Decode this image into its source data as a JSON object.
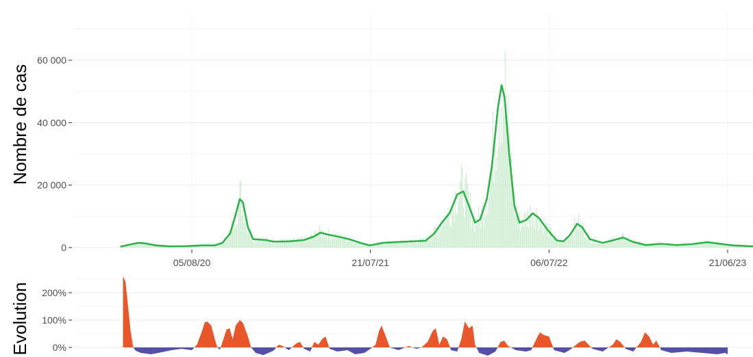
{
  "chart_data": [
    {
      "type": "line",
      "title": "",
      "xlabel": "",
      "ylabel": "Nombre de cas",
      "x_tick_labels": [
        "05/08/20",
        "21/07/21",
        "06/07/22",
        "21/06/23"
      ],
      "y_tick_labels": [
        "0",
        "20 000",
        "40 000",
        "60 000"
      ],
      "y_tick_values": [
        0,
        20000,
        40000,
        60000
      ],
      "ylim": [
        0,
        75000
      ],
      "xlim_days": [
        0,
        1290
      ],
      "x_tick_days": [
        140,
        490,
        840,
        1190
      ],
      "line_color": "#2db34a",
      "bar_color": "#bfe8c4",
      "grid": true,
      "series": [
        {
          "values_smoothed": [
            [
              0,
              300
            ],
            [
              20,
              1000
            ],
            [
              35,
              1500
            ],
            [
              50,
              1300
            ],
            [
              70,
              700
            ],
            [
              95,
              400
            ],
            [
              130,
              450
            ],
            [
              160,
              700
            ],
            [
              185,
              700
            ],
            [
              200,
              1500
            ],
            [
              215,
              4500
            ],
            [
              225,
              10000
            ],
            [
              234,
              15500
            ],
            [
              240,
              14500
            ],
            [
              250,
              6500
            ],
            [
              260,
              2700
            ],
            [
              285,
              2400
            ],
            [
              300,
              1900
            ],
            [
              330,
              2000
            ],
            [
              360,
              2400
            ],
            [
              380,
              3600
            ],
            [
              392,
              4800
            ],
            [
              405,
              4200
            ],
            [
              430,
              3400
            ],
            [
              450,
              2600
            ],
            [
              470,
              1500
            ],
            [
              488,
              700
            ],
            [
              515,
              1500
            ],
            [
              560,
              1900
            ],
            [
              598,
              2200
            ],
            [
              615,
              4500
            ],
            [
              630,
              8000
            ],
            [
              645,
              11000
            ],
            [
              660,
              17000
            ],
            [
              672,
              18000
            ],
            [
              685,
              12500
            ],
            [
              695,
              8000
            ],
            [
              705,
              9000
            ],
            [
              718,
              15500
            ],
            [
              728,
              26000
            ],
            [
              740,
              45000
            ],
            [
              747,
              52000
            ],
            [
              753,
              48000
            ],
            [
              762,
              30000
            ],
            [
              772,
              13500
            ],
            [
              782,
              8000
            ],
            [
              795,
              8800
            ],
            [
              808,
              11000
            ],
            [
              820,
              9500
            ],
            [
              838,
              5500
            ],
            [
              855,
              2300
            ],
            [
              868,
              2000
            ],
            [
              880,
              3800
            ],
            [
              895,
              7600
            ],
            [
              905,
              6500
            ],
            [
              920,
              2700
            ],
            [
              945,
              1500
            ],
            [
              965,
              2300
            ],
            [
              985,
              3200
            ],
            [
              1005,
              1800
            ],
            [
              1030,
              800
            ],
            [
              1060,
              1200
            ],
            [
              1090,
              800
            ],
            [
              1120,
              1100
            ],
            [
              1150,
              1700
            ],
            [
              1170,
              1300
            ],
            [
              1200,
              700
            ],
            [
              1240,
              400
            ],
            [
              1280,
              200
            ]
          ]
        }
      ]
    },
    {
      "type": "area",
      "title": "",
      "xlabel": "",
      "ylabel": "Evolution",
      "y_tick_labels": [
        "0%",
        "100%",
        "200%"
      ],
      "y_tick_values": [
        0,
        100,
        200
      ],
      "ylim": [
        -30,
        280
      ],
      "xlim_days": [
        0,
        1290
      ],
      "positive_color": "#e8562a",
      "negative_color": "#5350a6",
      "grid": true,
      "series": [
        {
          "values_percent": [
            [
              5,
              260
            ],
            [
              10,
              240
            ],
            [
              15,
              150
            ],
            [
              20,
              60
            ],
            [
              25,
              0
            ],
            [
              30,
              -12
            ],
            [
              40,
              -20
            ],
            [
              60,
              -25
            ],
            [
              80,
              -18
            ],
            [
              100,
              -10
            ],
            [
              120,
              -5
            ],
            [
              140,
              -10
            ],
            [
              150,
              10
            ],
            [
              160,
              60
            ],
            [
              165,
              90
            ],
            [
              170,
              95
            ],
            [
              178,
              80
            ],
            [
              185,
              30
            ],
            [
              190,
              0
            ],
            [
              195,
              -8
            ],
            [
              200,
              20
            ],
            [
              208,
              65
            ],
            [
              214,
              70
            ],
            [
              220,
              30
            ],
            [
              226,
              80
            ],
            [
              234,
              100
            ],
            [
              240,
              90
            ],
            [
              250,
              40
            ],
            [
              256,
              0
            ],
            [
              265,
              -20
            ],
            [
              280,
              -28
            ],
            [
              300,
              -12
            ],
            [
              310,
              10
            ],
            [
              318,
              5
            ],
            [
              330,
              -10
            ],
            [
              345,
              15
            ],
            [
              352,
              20
            ],
            [
              360,
              -5
            ],
            [
              372,
              -15
            ],
            [
              380,
              20
            ],
            [
              388,
              10
            ],
            [
              395,
              30
            ],
            [
              402,
              40
            ],
            [
              410,
              -5
            ],
            [
              425,
              -15
            ],
            [
              445,
              -10
            ],
            [
              460,
              -25
            ],
            [
              478,
              -20
            ],
            [
              490,
              -5
            ],
            [
              500,
              10
            ],
            [
              507,
              60
            ],
            [
              512,
              80
            ],
            [
              520,
              40
            ],
            [
              528,
              0
            ],
            [
              545,
              -10
            ],
            [
              565,
              5
            ],
            [
              580,
              -5
            ],
            [
              590,
              0
            ],
            [
              602,
              20
            ],
            [
              612,
              60
            ],
            [
              618,
              70
            ],
            [
              625,
              10
            ],
            [
              632,
              40
            ],
            [
              640,
              30
            ],
            [
              648,
              -10
            ],
            [
              660,
              -15
            ],
            [
              668,
              30
            ],
            [
              675,
              95
            ],
            [
              683,
              70
            ],
            [
              690,
              80
            ],
            [
              695,
              10
            ],
            [
              703,
              -20
            ],
            [
              720,
              -30
            ],
            [
              735,
              -15
            ],
            [
              745,
              20
            ],
            [
              752,
              25
            ],
            [
              760,
              5
            ],
            [
              775,
              -10
            ],
            [
              795,
              -15
            ],
            [
              805,
              -10
            ],
            [
              815,
              30
            ],
            [
              822,
              55
            ],
            [
              830,
              45
            ],
            [
              840,
              40
            ],
            [
              850,
              -10
            ],
            [
              870,
              -20
            ],
            [
              880,
              -10
            ],
            [
              890,
              5
            ],
            [
              900,
              20
            ],
            [
              910,
              25
            ],
            [
              925,
              -5
            ],
            [
              945,
              -15
            ],
            [
              965,
              10
            ],
            [
              972,
              30
            ],
            [
              980,
              20
            ],
            [
              990,
              -5
            ],
            [
              1005,
              -15
            ],
            [
              1020,
              20
            ],
            [
              1028,
              55
            ],
            [
              1036,
              40
            ],
            [
              1044,
              10
            ],
            [
              1050,
              25
            ],
            [
              1060,
              -10
            ],
            [
              1080,
              -20
            ],
            [
              1110,
              -15
            ],
            [
              1140,
              -20
            ],
            [
              1170,
              -25
            ],
            [
              1185,
              -20
            ],
            [
              1190,
              -25
            ]
          ]
        }
      ]
    }
  ]
}
